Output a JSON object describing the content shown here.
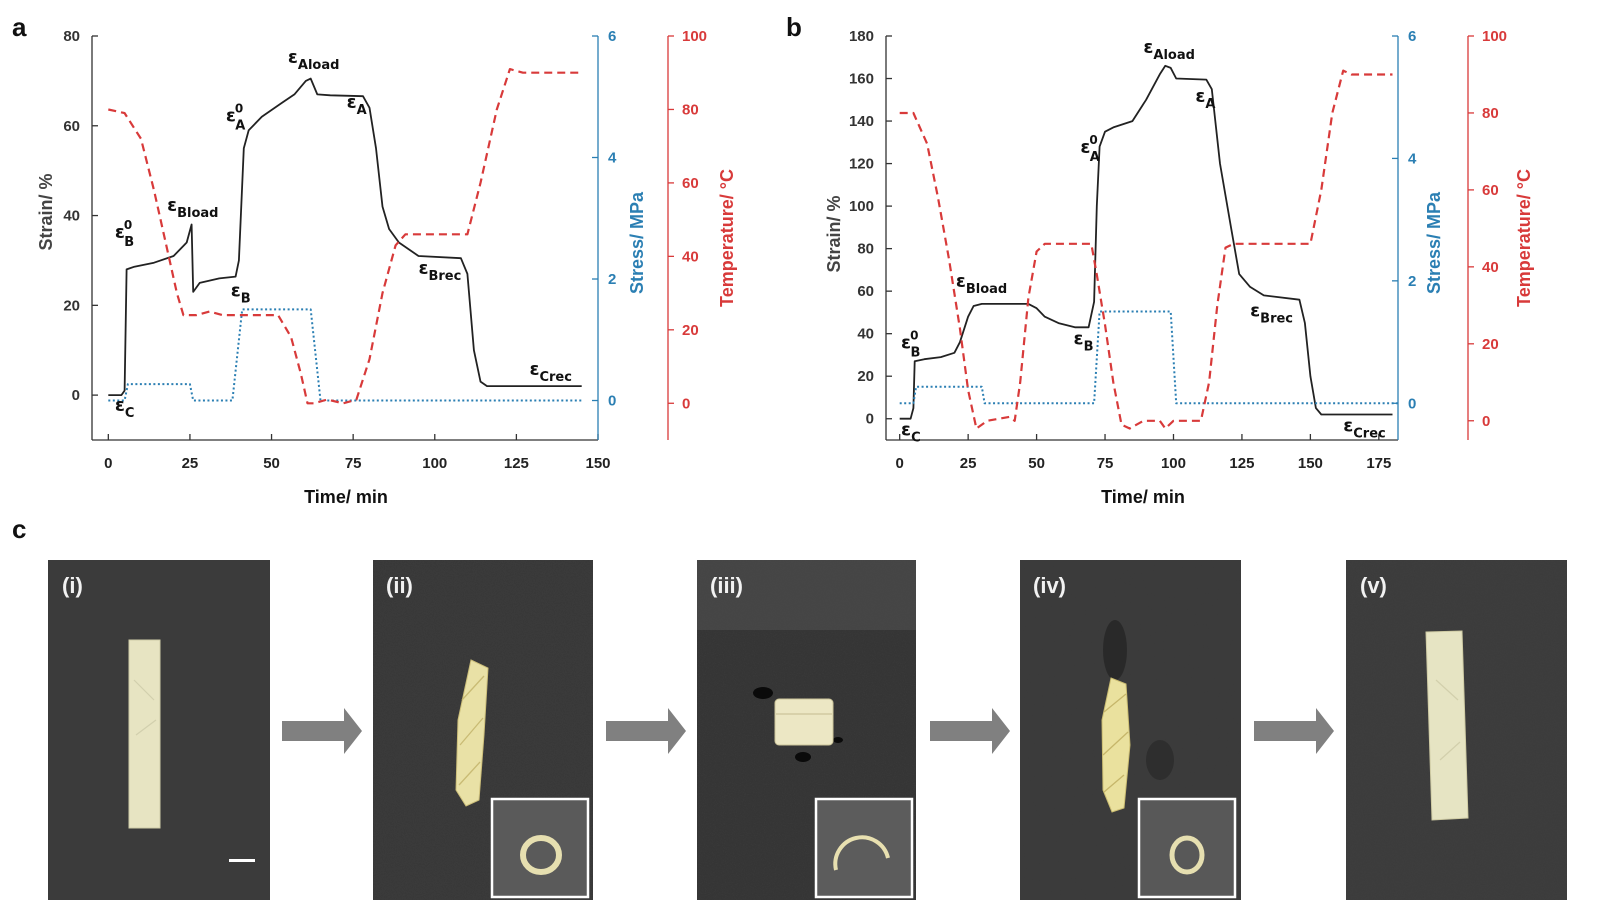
{
  "panels": {
    "a": "a",
    "b": "b",
    "c": "c"
  },
  "colors": {
    "strain": "#222222",
    "stress": "#2b7fb3",
    "temperature": "#d83a3a",
    "photo_bg": "#3a3a3a",
    "arrow": "#808080"
  },
  "chart_data": [
    {
      "id": "a",
      "type": "line",
      "xlabel": "Time/ min",
      "ylabel_left": "Strain/ %",
      "ylabel_right1": "Stress/ MPa",
      "ylabel_right2": "Temperature/ °C",
      "xlim": [
        -5,
        150
      ],
      "xticks": [
        0,
        25,
        50,
        75,
        100,
        125,
        150
      ],
      "ylim_left": [
        -10,
        80
      ],
      "yticks_left": [
        0,
        20,
        40,
        60,
        80
      ],
      "ylim_stress": [
        -0.65,
        6
      ],
      "yticks_stress": [
        0,
        2,
        4,
        6
      ],
      "ylim_temp": [
        -10,
        100
      ],
      "yticks_temp": [
        0,
        20,
        40,
        60,
        80,
        100
      ],
      "series": [
        {
          "id": "strain",
          "axis": "left",
          "style": "solid",
          "color": "#222222",
          "points": [
            [
              0,
              0
            ],
            [
              4,
              0
            ],
            [
              5,
              1
            ],
            [
              5.6,
              28
            ],
            [
              8,
              28.6
            ],
            [
              14,
              29.5
            ],
            [
              20,
              31
            ],
            [
              24,
              34
            ],
            [
              25.5,
              38
            ],
            [
              26,
              23
            ],
            [
              28,
              25
            ],
            [
              34,
              26
            ],
            [
              39,
              26.4
            ],
            [
              40,
              30
            ],
            [
              41.5,
              55
            ],
            [
              43,
              59
            ],
            [
              47,
              62
            ],
            [
              53,
              65
            ],
            [
              57,
              67
            ],
            [
              60.5,
              70
            ],
            [
              62,
              70.5
            ],
            [
              64,
              67
            ],
            [
              68,
              66.8
            ],
            [
              78,
              66.6
            ],
            [
              80,
              64
            ],
            [
              82,
              55
            ],
            [
              84,
              42
            ],
            [
              86,
              37
            ],
            [
              89,
              34
            ],
            [
              95,
              31
            ],
            [
              108,
              30.5
            ],
            [
              110,
              27
            ],
            [
              112,
              10
            ],
            [
              114,
              3
            ],
            [
              116,
              2
            ],
            [
              130,
              2
            ],
            [
              145,
              2
            ]
          ]
        },
        {
          "id": "stress",
          "axis": "stress",
          "style": "dotted",
          "color": "#2b7fb3",
          "points": [
            [
              0,
              0
            ],
            [
              5,
              0
            ],
            [
              6,
              0.27
            ],
            [
              25,
              0.27
            ],
            [
              26,
              0
            ],
            [
              38,
              0
            ],
            [
              41,
              1.5
            ],
            [
              62,
              1.5
            ],
            [
              65,
              0
            ],
            [
              145,
              0
            ]
          ]
        },
        {
          "id": "temperature",
          "axis": "temp",
          "style": "dashed",
          "color": "#d83a3a",
          "points": [
            [
              0,
              80
            ],
            [
              5,
              79
            ],
            [
              10,
              72
            ],
            [
              14,
              58
            ],
            [
              18,
              42
            ],
            [
              21,
              30
            ],
            [
              23,
              24
            ],
            [
              27,
              24
            ],
            [
              31,
              25
            ],
            [
              35,
              24
            ],
            [
              39,
              24
            ],
            [
              44,
              24
            ],
            [
              52,
              24
            ],
            [
              56,
              18
            ],
            [
              59,
              8
            ],
            [
              61,
              0
            ],
            [
              63,
              0
            ],
            [
              67,
              1
            ],
            [
              72,
              0
            ],
            [
              76,
              1
            ],
            [
              80,
              12
            ],
            [
              84,
              30
            ],
            [
              88,
              43
            ],
            [
              91,
              46
            ],
            [
              110,
              46
            ],
            [
              114,
              60
            ],
            [
              119,
              80
            ],
            [
              123,
              91
            ],
            [
              127,
              90
            ],
            [
              145,
              90
            ]
          ]
        }
      ],
      "annotations": [
        {
          "main": "ε",
          "sub": "B",
          "sup": "0",
          "x": 2,
          "y": 35
        },
        {
          "main": "ε",
          "sub": "Bload",
          "x": 18,
          "y": 41
        },
        {
          "main": "ε",
          "sub": "B",
          "x": 37.5,
          "y": 22
        },
        {
          "main": "ε",
          "sub": "C",
          "x": 2,
          "y": -3.5
        },
        {
          "main": "ε",
          "sub": "A",
          "sup": "0",
          "x": 36,
          "y": 61
        },
        {
          "main": "ε",
          "sub": "Aload",
          "x": 55,
          "y": 74
        },
        {
          "main": "ε",
          "sub": "A",
          "x": 73,
          "y": 64
        },
        {
          "main": "ε",
          "sub": "Brec",
          "x": 95,
          "y": 27
        },
        {
          "main": "ε",
          "sub": "Crec",
          "x": 129,
          "y": 4.5
        }
      ]
    },
    {
      "id": "b",
      "type": "line",
      "xlabel": "Time/ min",
      "ylabel_left": "Strain/ %",
      "ylabel_right1": "Stress/ MPa",
      "ylabel_right2": "Temperature/ °C",
      "xlim": [
        -5,
        182
      ],
      "xticks": [
        0,
        25,
        50,
        75,
        100,
        125,
        150,
        175
      ],
      "ylim_left": [
        -10,
        180
      ],
      "yticks_left": [
        0,
        20,
        40,
        60,
        80,
        100,
        120,
        140,
        160,
        180
      ],
      "ylim_stress": [
        -0.6,
        6
      ],
      "yticks_stress": [
        0,
        2,
        4,
        6
      ],
      "ylim_temp": [
        -5,
        100
      ],
      "yticks_temp": [
        0,
        20,
        40,
        60,
        80,
        100
      ],
      "series": [
        {
          "id": "strain",
          "axis": "left",
          "style": "solid",
          "color": "#222222",
          "points": [
            [
              0,
              0
            ],
            [
              4,
              0
            ],
            [
              5,
              5
            ],
            [
              5.5,
              27
            ],
            [
              9,
              28
            ],
            [
              15,
              29
            ],
            [
              20,
              31
            ],
            [
              22,
              36
            ],
            [
              25,
              48
            ],
            [
              27,
              53
            ],
            [
              30,
              54
            ],
            [
              47,
              54
            ],
            [
              50,
              52
            ],
            [
              53,
              48
            ],
            [
              58,
              45
            ],
            [
              64,
              43
            ],
            [
              69,
              43
            ],
            [
              71,
              55
            ],
            [
              72,
              100
            ],
            [
              73,
              128
            ],
            [
              75,
              135
            ],
            [
              78,
              137
            ],
            [
              85,
              140
            ],
            [
              90,
              150
            ],
            [
              95,
              162
            ],
            [
              97,
              166
            ],
            [
              99,
              165
            ],
            [
              101,
              160
            ],
            [
              112,
              159.5
            ],
            [
              114,
              155
            ],
            [
              117,
              120
            ],
            [
              121,
              90
            ],
            [
              124,
              68
            ],
            [
              128,
              62
            ],
            [
              133,
              58
            ],
            [
              146,
              56
            ],
            [
              148,
              45
            ],
            [
              150,
              20
            ],
            [
              152,
              5
            ],
            [
              154,
              2
            ],
            [
              170,
              2
            ],
            [
              180,
              2
            ]
          ]
        },
        {
          "id": "stress",
          "axis": "stress",
          "style": "dotted",
          "color": "#2b7fb3",
          "points": [
            [
              0,
              0
            ],
            [
              5,
              0
            ],
            [
              6,
              0.27
            ],
            [
              30,
              0.27
            ],
            [
              31,
              0
            ],
            [
              71,
              0
            ],
            [
              73,
              1.5
            ],
            [
              99,
              1.5
            ],
            [
              101,
              0
            ],
            [
              182,
              0
            ]
          ]
        },
        {
          "id": "temperature",
          "axis": "temp",
          "style": "dashed",
          "color": "#d83a3a",
          "points": [
            [
              0,
              80
            ],
            [
              5,
              80
            ],
            [
              10,
              72
            ],
            [
              14,
              58
            ],
            [
              18,
              42
            ],
            [
              22,
              24
            ],
            [
              25,
              8
            ],
            [
              28,
              -2
            ],
            [
              32,
              0
            ],
            [
              40,
              1
            ],
            [
              42,
              0
            ],
            [
              44,
              10
            ],
            [
              47,
              32
            ],
            [
              50,
              44
            ],
            [
              53,
              46
            ],
            [
              70,
              46
            ],
            [
              72,
              38
            ],
            [
              75,
              25
            ],
            [
              78,
              10
            ],
            [
              81,
              -1
            ],
            [
              84,
              -2
            ],
            [
              89,
              0
            ],
            [
              95,
              0
            ],
            [
              97,
              -2
            ],
            [
              100,
              0
            ],
            [
              110,
              0
            ],
            [
              113,
              10
            ],
            [
              116,
              30
            ],
            [
              119,
              45
            ],
            [
              122,
              46
            ],
            [
              150,
              46
            ],
            [
              154,
              60
            ],
            [
              158,
              80
            ],
            [
              162,
              91
            ],
            [
              165,
              90
            ],
            [
              180,
              90
            ]
          ]
        }
      ],
      "annotations": [
        {
          "main": "ε",
          "sub": "B",
          "sup": "0",
          "x": 0.5,
          "y": 33
        },
        {
          "main": "ε",
          "sub": "Bload",
          "x": 20.5,
          "y": 62
        },
        {
          "main": "ε",
          "sub": "B",
          "x": 63.5,
          "y": 35
        },
        {
          "main": "ε",
          "sub": "C",
          "x": 0.5,
          "y": -8
        },
        {
          "main": "ε",
          "sub": "A",
          "sup": "0",
          "x": 66,
          "y": 125
        },
        {
          "main": "ε",
          "sub": "Aload",
          "x": 89,
          "y": 172
        },
        {
          "main": "ε",
          "sub": "A",
          "x": 108,
          "y": 149
        },
        {
          "main": "ε",
          "sub": "Brec",
          "x": 128,
          "y": 48
        },
        {
          "main": "ε",
          "sub": "Crec",
          "x": 162,
          "y": -6
        }
      ]
    }
  ],
  "photos": [
    {
      "label": "(i)"
    },
    {
      "label": "(ii)"
    },
    {
      "label": "(iii)"
    },
    {
      "label": "(iv)"
    },
    {
      "label": "(v)"
    }
  ]
}
